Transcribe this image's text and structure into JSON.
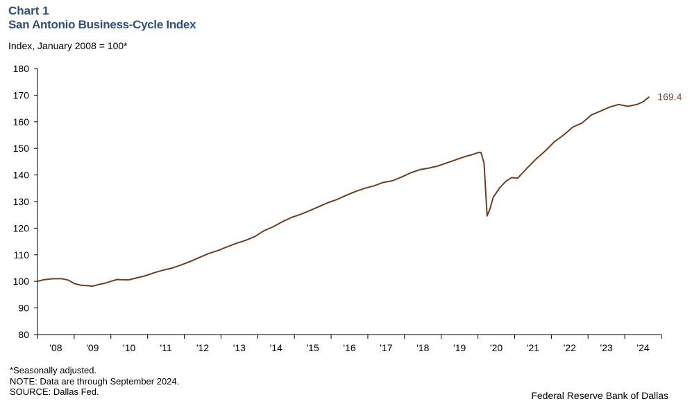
{
  "header": {
    "chart_number": "Chart 1",
    "title": "San Antonio Business-Cycle Index",
    "subtitle": "Index,  January 2008 = 100*"
  },
  "footer": {
    "note1": "*Seasonally adjusted.",
    "note2": "NOTE: Data are through September 2024.",
    "note3": "SOURCE: Dallas Fed.",
    "org": "Federal Reserve Bank of Dallas"
  },
  "chart_data": {
    "type": "line",
    "title": "San Antonio Business-Cycle Index",
    "ylabel": "Index,  January 2008 = 100*",
    "ylim": [
      80,
      180
    ],
    "yticks": [
      80,
      90,
      100,
      110,
      120,
      130,
      140,
      150,
      160,
      170,
      180
    ],
    "xlim": [
      "2008-01",
      "2024-12"
    ],
    "xtick_labels": [
      "'08",
      "'09",
      "'10",
      "'11",
      "'12",
      "'13",
      "'14",
      "'15",
      "'16",
      "'17",
      "'18",
      "'19",
      "'20",
      "'21",
      "'22",
      "'23",
      "'24"
    ],
    "end_label": "169.4",
    "line_color": "#6b3f22",
    "grid": false,
    "series": [
      {
        "points": [
          [
            "2008-01",
            100.0
          ],
          [
            "2008-03",
            100.6
          ],
          [
            "2008-06",
            101.0
          ],
          [
            "2008-09",
            101.0
          ],
          [
            "2008-11",
            100.5
          ],
          [
            "2009-01",
            99.2
          ],
          [
            "2009-03",
            98.6
          ],
          [
            "2009-05",
            98.4
          ],
          [
            "2009-07",
            98.2
          ],
          [
            "2009-09",
            98.8
          ],
          [
            "2009-11",
            99.3
          ],
          [
            "2010-01",
            100.0
          ],
          [
            "2010-03",
            100.7
          ],
          [
            "2010-05",
            100.6
          ],
          [
            "2010-07",
            100.6
          ],
          [
            "2010-09",
            101.2
          ],
          [
            "2010-12",
            102.0
          ],
          [
            "2011-03",
            103.2
          ],
          [
            "2011-06",
            104.2
          ],
          [
            "2011-09",
            105.0
          ],
          [
            "2011-12",
            106.2
          ],
          [
            "2012-03",
            107.5
          ],
          [
            "2012-06",
            109.0
          ],
          [
            "2012-09",
            110.5
          ],
          [
            "2012-12",
            111.6
          ],
          [
            "2013-03",
            113.0
          ],
          [
            "2013-06",
            114.3
          ],
          [
            "2013-09",
            115.4
          ],
          [
            "2013-12",
            116.8
          ],
          [
            "2014-03",
            119.0
          ],
          [
            "2014-06",
            120.5
          ],
          [
            "2014-09",
            122.4
          ],
          [
            "2014-12",
            124.0
          ],
          [
            "2015-03",
            125.2
          ],
          [
            "2015-06",
            126.6
          ],
          [
            "2015-09",
            128.1
          ],
          [
            "2015-12",
            129.6
          ],
          [
            "2016-03",
            130.8
          ],
          [
            "2016-06",
            132.4
          ],
          [
            "2016-09",
            133.8
          ],
          [
            "2016-12",
            135.0
          ],
          [
            "2017-03",
            135.9
          ],
          [
            "2017-06",
            137.2
          ],
          [
            "2017-09",
            137.8
          ],
          [
            "2017-12",
            139.2
          ],
          [
            "2018-03",
            140.8
          ],
          [
            "2018-06",
            142.0
          ],
          [
            "2018-09",
            142.6
          ],
          [
            "2018-12",
            143.4
          ],
          [
            "2019-03",
            144.6
          ],
          [
            "2019-06",
            145.8
          ],
          [
            "2019-09",
            147.0
          ],
          [
            "2019-11",
            147.6
          ],
          [
            "2020-01",
            148.4
          ],
          [
            "2020-02",
            148.4
          ],
          [
            "2020-03",
            144.5
          ],
          [
            "2020-04",
            124.6
          ],
          [
            "2020-05",
            127.5
          ],
          [
            "2020-06",
            131.6
          ],
          [
            "2020-08",
            135.0
          ],
          [
            "2020-10",
            137.5
          ],
          [
            "2020-12",
            139.0
          ],
          [
            "2021-02",
            138.8
          ],
          [
            "2021-05",
            142.5
          ],
          [
            "2021-08",
            146.0
          ],
          [
            "2021-11",
            149.0
          ],
          [
            "2022-02",
            152.5
          ],
          [
            "2022-05",
            155.0
          ],
          [
            "2022-08",
            158.0
          ],
          [
            "2022-11",
            159.5
          ],
          [
            "2023-02",
            162.5
          ],
          [
            "2023-05",
            164.0
          ],
          [
            "2023-08",
            165.5
          ],
          [
            "2023-11",
            166.5
          ],
          [
            "2024-02",
            165.8
          ],
          [
            "2024-05",
            166.5
          ],
          [
            "2024-07",
            167.5
          ],
          [
            "2024-09",
            169.4
          ]
        ]
      }
    ]
  }
}
